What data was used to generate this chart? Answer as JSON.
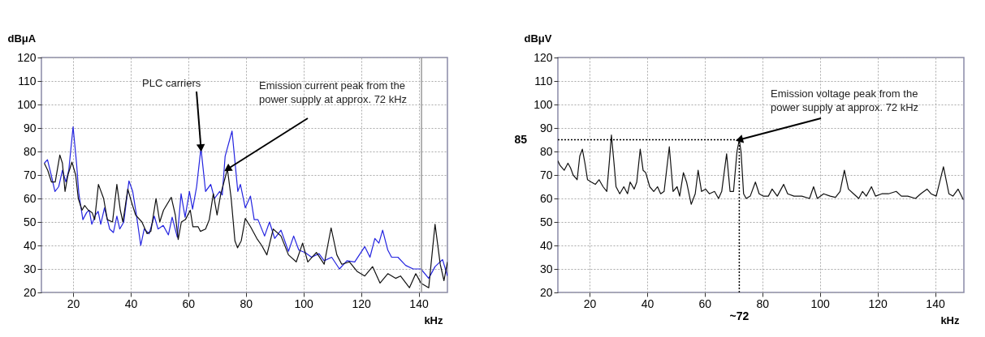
{
  "chart_data": [
    {
      "type": "line",
      "ylabel": "dBμA",
      "xlabel": "kHz",
      "xlim": [
        9,
        150
      ],
      "ylim": [
        20,
        120
      ],
      "xticks": [
        20,
        40,
        60,
        80,
        100,
        120,
        140
      ],
      "yticks": [
        20,
        30,
        40,
        50,
        60,
        70,
        80,
        90,
        100,
        110,
        120
      ],
      "grid": true,
      "series": [
        {
          "color": "#2424e0",
          "x": [
            10,
            11.1,
            12.4,
            13.7,
            15,
            16.3,
            17.5,
            18.5,
            20,
            21.2,
            22,
            23.4,
            24.7,
            25.6,
            26.5,
            27.8,
            28.7,
            29.6,
            30.9,
            32.7,
            34,
            35.2,
            36.2,
            37.6,
            39.4,
            40.7,
            42,
            43.5,
            44.7,
            46.4,
            48.2,
            49.5,
            51.3,
            53.1,
            54.4,
            56.2,
            57.5,
            58.9,
            60.4,
            61.5,
            62.9,
            64.4,
            66,
            67.8,
            69.1,
            70.9,
            71.8,
            72.8,
            75.2,
            76.5,
            77.2,
            78.1,
            79.8,
            81.6,
            82.9,
            84.2,
            86.5,
            88.2,
            90,
            92.2,
            93.5,
            94.8,
            96.6,
            98.4,
            100.6,
            102.8,
            105.4,
            107.2,
            109.8,
            112.5,
            115.1,
            117.8,
            121.3,
            123.1,
            124.8,
            126.2,
            127.5,
            129.3,
            130.6,
            132.8,
            135.5,
            138.1,
            140.8,
            143.5,
            145.7,
            148.3,
            150
          ],
          "values": [
            75,
            76.5,
            70,
            63,
            65,
            72,
            67,
            72,
            90.5,
            75,
            62,
            51,
            54,
            55,
            49,
            53,
            54.5,
            49,
            56,
            47,
            45.5,
            52.5,
            47,
            50,
            67.5,
            63,
            53,
            40,
            47,
            45,
            52.5,
            47,
            48.5,
            44.5,
            52,
            43.5,
            62,
            52,
            63,
            55.5,
            65,
            81.5,
            63,
            66,
            60,
            63,
            61.5,
            78,
            88.7,
            72,
            63,
            66,
            56,
            61,
            51,
            51,
            44,
            50,
            43,
            46.5,
            42,
            37.5,
            44,
            38,
            37,
            35,
            36.5,
            33.5,
            35,
            30,
            33.5,
            33,
            39.5,
            35,
            43,
            41,
            46.5,
            38,
            35,
            35,
            31.5,
            30,
            30,
            26,
            31,
            34,
            27
          ]
        },
        {
          "color": "#111111",
          "x": [
            10,
            11.2,
            12.5,
            13.8,
            15.4,
            16.3,
            17.2,
            18.2,
            19.6,
            20.9,
            21.8,
            23.1,
            24,
            25.3,
            26.6,
            27.5,
            28.8,
            30.6,
            31.9,
            33.7,
            35.2,
            36.4,
            37.3,
            39,
            40.4,
            41.7,
            43.9,
            45.7,
            47,
            48.8,
            50.1,
            51.4,
            54.1,
            55.5,
            56.5,
            57.6,
            59,
            60.7,
            61.6,
            63.4,
            64.2,
            66,
            67.3,
            68.7,
            70,
            71.3,
            73.6,
            74.9,
            76.2,
            77.1,
            78.4,
            79.8,
            81.6,
            83.8,
            85.5,
            87.3,
            89.5,
            92.2,
            94.8,
            97.5,
            99.7,
            101.5,
            104.5,
            107.2,
            109.6,
            111.6,
            113.3,
            116,
            118.6,
            121.3,
            124,
            126.6,
            129.3,
            132,
            133.7,
            136.8,
            139,
            140.8,
            143.5,
            145.7,
            147.5,
            148.8,
            150
          ],
          "values": [
            75,
            72,
            67,
            67,
            78.5,
            75,
            63,
            70,
            75.5,
            70,
            60,
            55,
            57,
            55,
            54,
            51,
            66,
            60,
            51,
            50,
            66,
            55,
            50,
            64,
            58,
            53,
            50,
            45,
            46,
            60,
            50,
            55,
            60.5,
            53,
            42.5,
            50,
            51,
            55,
            48,
            48,
            46,
            47,
            51,
            62,
            53,
            62,
            72.5,
            60,
            42,
            39,
            42,
            51.5,
            48,
            43,
            40,
            36,
            47,
            44,
            36,
            33,
            41,
            33,
            37,
            32,
            47.5,
            36,
            32,
            33,
            29,
            27,
            31,
            24,
            28,
            26,
            27,
            22,
            28,
            24,
            22,
            49,
            32,
            25,
            33
          ]
        }
      ],
      "ref_lines": [
        {
          "axis": "x",
          "value": 141,
          "label": null,
          "color": "#999999",
          "line_style": "solid"
        }
      ],
      "annotations": [
        {
          "text": "PLC carriers",
          "x": 64.4,
          "y": 81.5
        },
        {
          "text": "Emission current peak from the\npower supply at approx. 72  kHz",
          "x": 73.6,
          "y": 72.5
        }
      ]
    },
    {
      "type": "line",
      "ylabel": "dBμV",
      "xlabel": "kHz",
      "xlim": [
        9,
        150
      ],
      "ylim": [
        20,
        120
      ],
      "xticks": [
        20,
        40,
        60,
        80,
        100,
        120,
        140
      ],
      "yticks": [
        20,
        30,
        40,
        50,
        60,
        70,
        80,
        90,
        100,
        110,
        120
      ],
      "grid": true,
      "series": [
        {
          "color": "#111111",
          "x": [
            9,
            9.8,
            11.2,
            12.5,
            13.4,
            14.3,
            15.7,
            16.6,
            17.5,
            18.4,
            19.3,
            20.6,
            22,
            23.3,
            24.7,
            26,
            26.9,
            27.6,
            28.5,
            29.2,
            30.5,
            31.9,
            33.2,
            34.1,
            35.5,
            36.4,
            37.6,
            38.6,
            39.5,
            40.9,
            42.3,
            43.6,
            44.7,
            45.9,
            47.7,
            49,
            50.4,
            51.3,
            52.6,
            53.7,
            55.3,
            56.7,
            57.7,
            58.9,
            60.3,
            61.6,
            63.4,
            64.8,
            65.9,
            67.6,
            68.8,
            70,
            71.2,
            72,
            72.6,
            73.5,
            74.4,
            75.8,
            77.6,
            78.9,
            80.3,
            82.1,
            83.4,
            85.2,
            87.4,
            88.8,
            91,
            93.7,
            96.4,
            97.8,
            99.1,
            101.3,
            103.6,
            105.4,
            107,
            108.5,
            109.9,
            111.7,
            113.5,
            114.8,
            116.1,
            117.9,
            119.3,
            121.5,
            123.8,
            126.5,
            128.3,
            130.5,
            133.2,
            135,
            137.2,
            138.6,
            140.4,
            142.9,
            144.8,
            146.2,
            148,
            149.8
          ],
          "values": [
            76,
            74,
            72,
            75,
            73,
            70,
            68,
            78,
            81,
            75,
            68,
            67,
            66,
            68,
            65,
            63,
            76,
            87,
            75,
            65,
            62,
            65,
            62,
            67,
            64,
            67,
            81,
            72,
            71,
            65,
            63,
            65,
            62,
            63,
            82,
            63,
            65,
            61,
            71,
            67,
            57.5,
            62,
            72,
            63,
            64,
            62,
            63,
            60,
            63,
            79,
            63,
            63,
            80,
            85,
            80,
            62,
            60,
            61,
            67,
            62,
            61,
            61,
            64,
            61,
            66,
            62,
            61,
            61,
            60,
            65,
            60,
            62,
            61,
            60.5,
            63,
            72,
            64,
            62,
            60,
            63,
            61,
            65,
            61,
            62,
            62,
            63,
            61,
            61,
            60,
            62,
            64,
            62,
            61,
            73.5,
            62,
            61,
            64,
            59.5
          ]
        }
      ],
      "ref_lines": [
        {
          "axis": "y",
          "value": 85,
          "label": "85",
          "color": "#000000",
          "line_style": "dotted"
        },
        {
          "axis": "x",
          "value": 72,
          "label": "~72",
          "color": "#000000",
          "line_style": "dotted"
        }
      ],
      "annotations": [
        {
          "text": "Emission voltage peak from the\npower supply at approx. 72  kHz",
          "x": 72,
          "y": 85
        }
      ]
    }
  ]
}
